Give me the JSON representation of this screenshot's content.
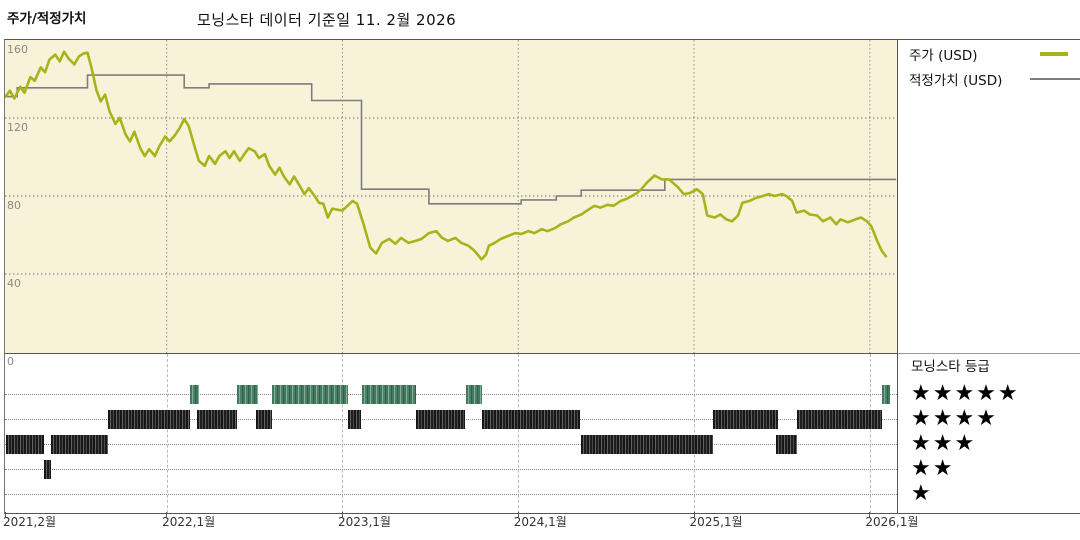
{
  "header": {
    "title": "주가/적정가치",
    "subtitle": "모닝스타 데이터 기준일 11. 2월 2026"
  },
  "legend": {
    "price_label": "주가 (USD)",
    "fair_value_label": "적정가치 (USD)"
  },
  "rating_panel": {
    "title": "모닝스타 등급",
    "rows": [
      "★★★★★",
      "★★★★",
      "★★★",
      "★★",
      "★"
    ]
  },
  "colors": {
    "plot_background": "#f8f3d8",
    "price_line": "#a6b31a",
    "fair_value_line": "#7d7d7d",
    "rating_green": "#4e8168",
    "rating_dark": "#1e1e1e"
  },
  "chart_data": {
    "type": "line",
    "title": "주가/적정가치",
    "x_unit": "months since 2021-02",
    "ylim": [
      0,
      160
    ],
    "y_ticks": [
      160,
      120,
      80,
      40,
      0
    ],
    "x_ticks": [
      {
        "m": 0,
        "label": "2021,2월"
      },
      {
        "m": 11,
        "label": "2022,1월"
      },
      {
        "m": 23,
        "label": "2023,1월"
      },
      {
        "m": 35,
        "label": "2024,1월"
      },
      {
        "m": 47,
        "label": "2025,1월"
      },
      {
        "m": 59,
        "label": "2026,1월"
      }
    ],
    "series": [
      {
        "name": "주가 (USD)",
        "style": "line",
        "points": [
          [
            0,
            131
          ],
          [
            0.3,
            134
          ],
          [
            0.6,
            130
          ],
          [
            1,
            136
          ],
          [
            1.3,
            133
          ],
          [
            1.7,
            141
          ],
          [
            2,
            139
          ],
          [
            2.4,
            146
          ],
          [
            2.7,
            143.5
          ],
          [
            3,
            150
          ],
          [
            3.4,
            152.5
          ],
          [
            3.7,
            149
          ],
          [
            4,
            154
          ],
          [
            4.3,
            150.5
          ],
          [
            4.7,
            147.5
          ],
          [
            5,
            151.5
          ],
          [
            5.3,
            153
          ],
          [
            5.6,
            153.5
          ],
          [
            5.9,
            145
          ],
          [
            6.2,
            134.5
          ],
          [
            6.5,
            128.5
          ],
          [
            6.8,
            132
          ],
          [
            7.1,
            123.5
          ],
          [
            7.5,
            117
          ],
          [
            7.8,
            120
          ],
          [
            8.2,
            111.5
          ],
          [
            8.5,
            108
          ],
          [
            8.8,
            113
          ],
          [
            9.2,
            104.5
          ],
          [
            9.5,
            100.5
          ],
          [
            9.8,
            104
          ],
          [
            10.2,
            100.5
          ],
          [
            10.5,
            105.5
          ],
          [
            10.9,
            110.5
          ],
          [
            11.2,
            108
          ],
          [
            11.6,
            111.5
          ],
          [
            11.9,
            115
          ],
          [
            12.2,
            119.5
          ],
          [
            12.5,
            116
          ],
          [
            12.9,
            105.5
          ],
          [
            13.2,
            98
          ],
          [
            13.6,
            95.5
          ],
          [
            13.9,
            100.5
          ],
          [
            14.3,
            96.5
          ],
          [
            14.6,
            100.5
          ],
          [
            15,
            103
          ],
          [
            15.3,
            99.5
          ],
          [
            15.6,
            103
          ],
          [
            16,
            98
          ],
          [
            16.3,
            101.5
          ],
          [
            16.6,
            104.5
          ],
          [
            17,
            103
          ],
          [
            17.3,
            99.5
          ],
          [
            17.7,
            101.5
          ],
          [
            18,
            95.5
          ],
          [
            18.4,
            91
          ],
          [
            18.7,
            94.5
          ],
          [
            19,
            90
          ],
          [
            19.4,
            86
          ],
          [
            19.7,
            90
          ],
          [
            20.1,
            85
          ],
          [
            20.4,
            81
          ],
          [
            20.7,
            84
          ],
          [
            21.1,
            80
          ],
          [
            21.4,
            76.5
          ],
          [
            21.7,
            76
          ],
          [
            22,
            69
          ],
          [
            22.3,
            73.5
          ],
          [
            23,
            72.5
          ],
          [
            23.7,
            77.5
          ],
          [
            24,
            76
          ],
          [
            24.4,
            66.5
          ],
          [
            24.9,
            53.5
          ],
          [
            25.3,
            50.5
          ],
          [
            25.7,
            56
          ],
          [
            26.2,
            58
          ],
          [
            26.6,
            55.5
          ],
          [
            27,
            58.5
          ],
          [
            27.5,
            56
          ],
          [
            28,
            57
          ],
          [
            28.4,
            58
          ],
          [
            28.9,
            61
          ],
          [
            29.4,
            62
          ],
          [
            29.8,
            58.5
          ],
          [
            30.2,
            57
          ],
          [
            30.7,
            58.5
          ],
          [
            31.1,
            56
          ],
          [
            31.6,
            54.5
          ],
          [
            32,
            52
          ],
          [
            32.5,
            47.5
          ],
          [
            32.8,
            50
          ],
          [
            33,
            54.5
          ],
          [
            33.4,
            56
          ],
          [
            33.8,
            58
          ],
          [
            34.3,
            59.5
          ],
          [
            34.8,
            61
          ],
          [
            35.2,
            60.5
          ],
          [
            35.7,
            62
          ],
          [
            36.1,
            61
          ],
          [
            36.6,
            63
          ],
          [
            37,
            62
          ],
          [
            37.5,
            63.5
          ],
          [
            37.9,
            65.5
          ],
          [
            38.4,
            67
          ],
          [
            38.8,
            69
          ],
          [
            39.3,
            70.5
          ],
          [
            39.7,
            72.5
          ],
          [
            40.2,
            75
          ],
          [
            40.6,
            74
          ],
          [
            41.1,
            75.5
          ],
          [
            41.5,
            75
          ],
          [
            42,
            77.5
          ],
          [
            42.4,
            78.5
          ],
          [
            43.1,
            81.5
          ],
          [
            43.4,
            83.5
          ],
          [
            43.8,
            87
          ],
          [
            44.3,
            90.5
          ],
          [
            44.8,
            88.5
          ],
          [
            45.3,
            88.5
          ],
          [
            45.9,
            84.5
          ],
          [
            46.3,
            81
          ],
          [
            46.7,
            81.5
          ],
          [
            47.2,
            83.5
          ],
          [
            47.6,
            81
          ],
          [
            47.9,
            70
          ],
          [
            48.4,
            69
          ],
          [
            48.8,
            70.5
          ],
          [
            49.2,
            68
          ],
          [
            49.6,
            67
          ],
          [
            50,
            70
          ],
          [
            50.3,
            76.5
          ],
          [
            50.8,
            77.5
          ],
          [
            51.2,
            79
          ],
          [
            51.7,
            80
          ],
          [
            52.1,
            81
          ],
          [
            52.5,
            80
          ],
          [
            53,
            81
          ],
          [
            53.3,
            80
          ],
          [
            53.7,
            77.5
          ],
          [
            54,
            71.5
          ],
          [
            54.5,
            72.5
          ],
          [
            54.9,
            70.5
          ],
          [
            55.4,
            70
          ],
          [
            55.8,
            67
          ],
          [
            56.3,
            69
          ],
          [
            56.7,
            65.5
          ],
          [
            57,
            68
          ],
          [
            57.5,
            66.5
          ],
          [
            58,
            68
          ],
          [
            58.4,
            69
          ],
          [
            58.8,
            67
          ],
          [
            59.1,
            64.5
          ],
          [
            59.5,
            57
          ],
          [
            59.8,
            52
          ],
          [
            60.1,
            49
          ]
        ]
      },
      {
        "name": "적정가치 (USD)",
        "style": "step",
        "end_m": 60.8,
        "points": [
          [
            0,
            131
          ],
          [
            0.8,
            135.5
          ],
          [
            5.6,
            142
          ],
          [
            12.2,
            135.5
          ],
          [
            13.9,
            137.5
          ],
          [
            20.9,
            129
          ],
          [
            24.3,
            83.5
          ],
          [
            28.9,
            76
          ],
          [
            35.2,
            78
          ],
          [
            37.6,
            80
          ],
          [
            39.3,
            83
          ],
          [
            45,
            88.5
          ]
        ]
      }
    ],
    "rating_timeline": {
      "5": [
        [
          12.6,
          13.2
        ],
        [
          15.8,
          17.2
        ],
        [
          18.2,
          23.4
        ],
        [
          24.3,
          28.0
        ],
        [
          31.4,
          32.5
        ],
        [
          59.8,
          60.4
        ]
      ],
      "4": [
        [
          7.0,
          12.6
        ],
        [
          13.1,
          15.8
        ],
        [
          17.1,
          18.2
        ],
        [
          23.4,
          24.3
        ],
        [
          28.0,
          31.4
        ],
        [
          32.5,
          39.2
        ],
        [
          48.3,
          52.7
        ],
        [
          54.0,
          59.8
        ]
      ],
      "3": [
        [
          0,
          2.6
        ],
        [
          3.1,
          7.0
        ],
        [
          39.3,
          48.3
        ],
        [
          52.6,
          54.0
        ]
      ],
      "2": [
        [
          2.6,
          3.1
        ]
      ],
      "1": []
    }
  }
}
